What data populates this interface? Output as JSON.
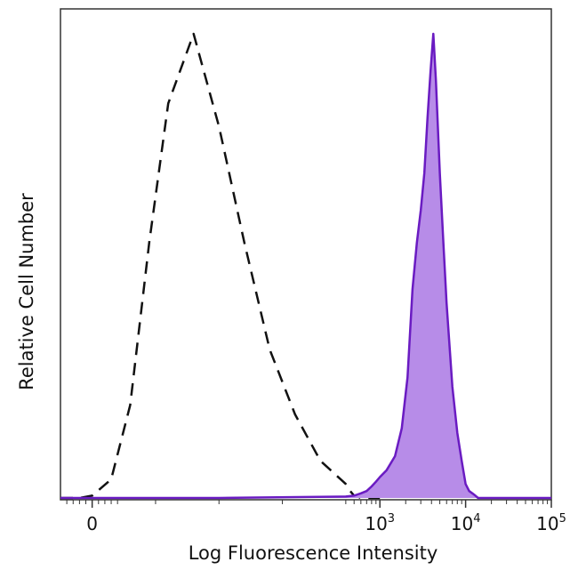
{
  "chart_data": {
    "type": "area",
    "xlabel": "Log Fluorescence Intensity",
    "ylabel": "Relative Cell Number",
    "x_scale": "biexponential",
    "ylim": [
      0,
      100
    ],
    "grid": false,
    "legend": "none",
    "tick_labels": [
      {
        "base": "0",
        "exp": ""
      },
      {
        "base": "10",
        "exp": "3"
      },
      {
        "base": "10",
        "exp": "4"
      },
      {
        "base": "10",
        "exp": "5"
      }
    ],
    "series": [
      {
        "style": "dashed",
        "color": "#111111",
        "x": [
          -50,
          -20,
          0,
          30,
          60,
          90,
          120,
          160,
          200,
          240,
          280,
          320,
          360,
          400,
          450,
          500,
          550,
          600,
          700,
          800,
          900,
          1000
        ],
        "y": [
          0,
          0,
          0.5,
          4,
          20,
          55,
          85,
          100,
          80,
          55,
          32,
          18,
          8,
          3,
          1.5,
          0.5,
          0.3,
          0,
          0,
          0,
          0,
          0
        ]
      },
      {
        "style": "filled",
        "color": "#6a1bc2",
        "fill": "#b78ce8",
        "x": [
          -50,
          0,
          200,
          400,
          500,
          600,
          700,
          800,
          900,
          1000,
          1200,
          1500,
          1800,
          2100,
          2400,
          2700,
          3000,
          3300,
          3600,
          3900,
          4200,
          4500,
          5000,
          5500,
          6000,
          7000,
          8000,
          9000,
          10000,
          11000,
          12000,
          13000,
          14000,
          100000
        ],
        "y": [
          0,
          0,
          0,
          0.3,
          0.5,
          1,
          1.5,
          2.5,
          3.5,
          4.5,
          6,
          9,
          15,
          26,
          45,
          55,
          62,
          70,
          82,
          92,
          100,
          90,
          70,
          55,
          42,
          24,
          14,
          8,
          3,
          1.5,
          1,
          0.5,
          0,
          0
        ]
      }
    ]
  }
}
